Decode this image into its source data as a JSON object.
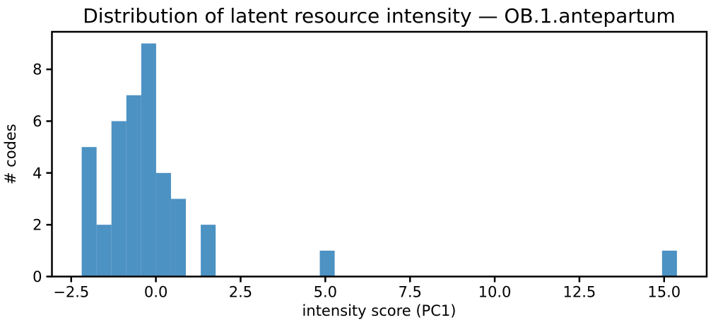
{
  "chart_data": {
    "type": "bar",
    "subtype": "histogram",
    "title": "Distribution of latent resource intensity — OB.1.antepartum",
    "xlabel": "intensity score (PC1)",
    "ylabel": "# codes",
    "bin_start": -2.19,
    "bin_width": 0.4392,
    "counts": [
      5,
      2,
      6,
      7,
      9,
      4,
      3,
      0,
      2,
      0,
      0,
      0,
      0,
      0,
      0,
      0,
      1,
      0,
      0,
      0,
      0,
      0,
      0,
      0,
      0,
      0,
      0,
      0,
      0,
      0,
      0,
      0,
      0,
      0,
      0,
      0,
      0,
      0,
      0,
      1
    ],
    "total_codes": 40,
    "xlim": [
      -3.0684,
      16.2564
    ],
    "ylim": [
      0,
      9.45
    ],
    "xticks": {
      "values": [
        -2.5,
        0.0,
        2.5,
        5.0,
        7.5,
        10.0,
        12.5,
        15.0
      ],
      "labels": [
        "−2.5",
        "0.0",
        "2.5",
        "5.0",
        "7.5",
        "10.0",
        "12.5",
        "15.0"
      ]
    },
    "yticks": {
      "values": [
        0,
        2,
        4,
        6,
        8
      ],
      "labels": [
        "0",
        "2",
        "4",
        "6",
        "8"
      ]
    },
    "grid": false,
    "legend": null,
    "colors": {
      "bar": "#4C92C3",
      "axis": "#000000",
      "text": "#000000",
      "background": "#FFFFFF"
    }
  }
}
